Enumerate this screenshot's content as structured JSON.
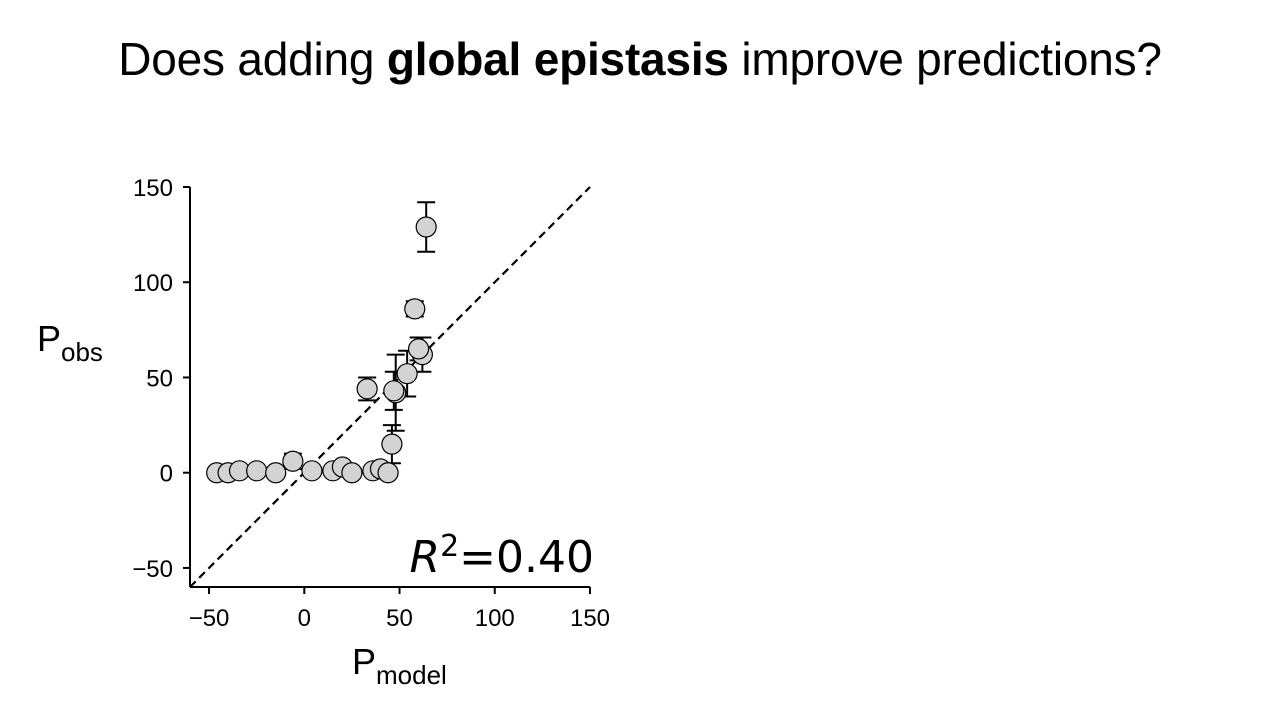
{
  "title": {
    "before": "Does adding ",
    "bold": "global epistasis",
    "after": " improve predictions?"
  },
  "chart_data": {
    "type": "scatter",
    "title": "",
    "xlabel": {
      "main": "P",
      "sub": "model"
    },
    "ylabel": {
      "main": "P",
      "sub": "obs"
    },
    "xlim": [
      -60,
      150
    ],
    "ylim": [
      -60,
      150
    ],
    "xticks": [
      -50,
      0,
      50,
      100,
      150
    ],
    "yticks": [
      -50,
      0,
      50,
      100,
      150
    ],
    "xtick_labels": [
      "−50",
      "0",
      "50",
      "100",
      "150"
    ],
    "ytick_labels": [
      "−50",
      "0",
      "50",
      "100",
      "150"
    ],
    "grid": false,
    "identity_line": true,
    "marker_color": "#d3d3d3",
    "annotation": {
      "symbol": "R",
      "power": "2",
      "text": "=0.40"
    },
    "points": [
      {
        "x": -46,
        "y": 0,
        "err": 2
      },
      {
        "x": -40,
        "y": 0,
        "err": 1
      },
      {
        "x": -34,
        "y": 1,
        "err": 1
      },
      {
        "x": -25,
        "y": 1,
        "err": 1
      },
      {
        "x": -15,
        "y": 0,
        "err": 1
      },
      {
        "x": -6,
        "y": 6,
        "err": 4
      },
      {
        "x": 4,
        "y": 1,
        "err": 1
      },
      {
        "x": 15,
        "y": 1,
        "err": 1
      },
      {
        "x": 20,
        "y": 3,
        "err": 1
      },
      {
        "x": 25,
        "y": 0,
        "err": 1
      },
      {
        "x": 36,
        "y": 1,
        "err": 1
      },
      {
        "x": 40,
        "y": 2,
        "err": 1
      },
      {
        "x": 44,
        "y": 0,
        "err": 1
      },
      {
        "x": 33,
        "y": 44,
        "err": 6
      },
      {
        "x": 46,
        "y": 15,
        "err": 10
      },
      {
        "x": 48,
        "y": 42,
        "err": 20
      },
      {
        "x": 47,
        "y": 43,
        "err": 10
      },
      {
        "x": 54,
        "y": 52,
        "err": 12
      },
      {
        "x": 58,
        "y": 86,
        "err": 4
      },
      {
        "x": 62,
        "y": 62,
        "err": 9
      },
      {
        "x": 60,
        "y": 65,
        "err": 6
      },
      {
        "x": 64,
        "y": 129,
        "err": 13
      }
    ]
  }
}
